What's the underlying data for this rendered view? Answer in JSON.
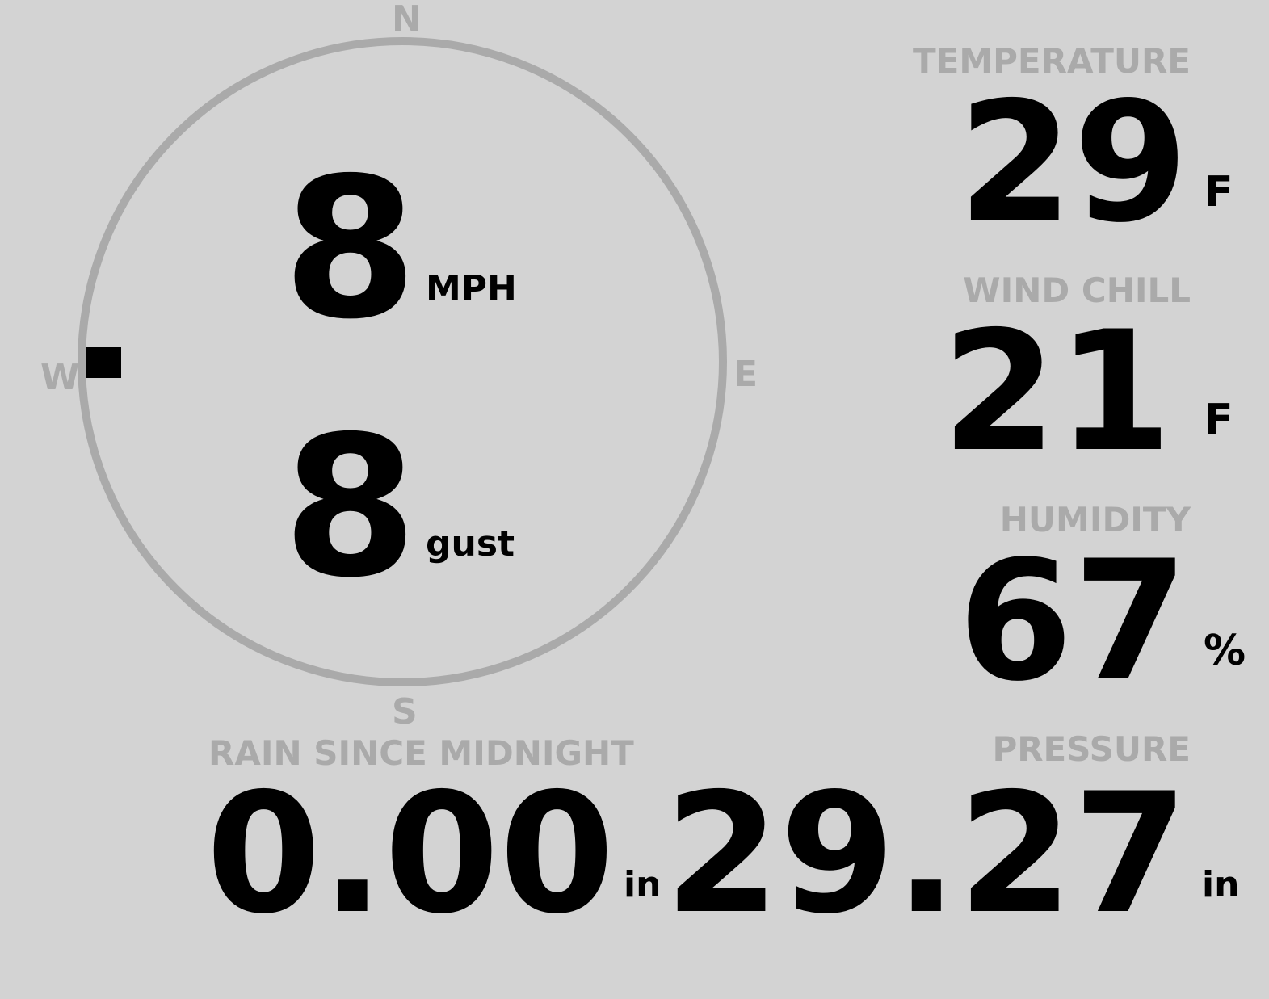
{
  "compass": {
    "north": "N",
    "south": "S",
    "east": "E",
    "west": "W",
    "wind_direction": "W",
    "ring_color": "#aaaaaa",
    "marker_color": "#000000"
  },
  "wind": {
    "speed": "8",
    "speed_unit": "MPH",
    "gust": "8",
    "gust_unit": "gust"
  },
  "temperature": {
    "label": "TEMPERATURE",
    "value": "29",
    "unit": "F"
  },
  "wind_chill": {
    "label": "WIND CHILL",
    "value": "21",
    "unit": "F"
  },
  "humidity": {
    "label": "HUMIDITY",
    "value": "67",
    "unit": "%"
  },
  "rain": {
    "label": "RAIN SINCE MIDNIGHT",
    "value": "0.00",
    "unit": "in"
  },
  "pressure": {
    "label": "PRESSURE",
    "value": "29.27",
    "unit": "in"
  },
  "colors": {
    "background": "#d3d3d3",
    "label": "#aaaaaa",
    "value": "#000000"
  }
}
